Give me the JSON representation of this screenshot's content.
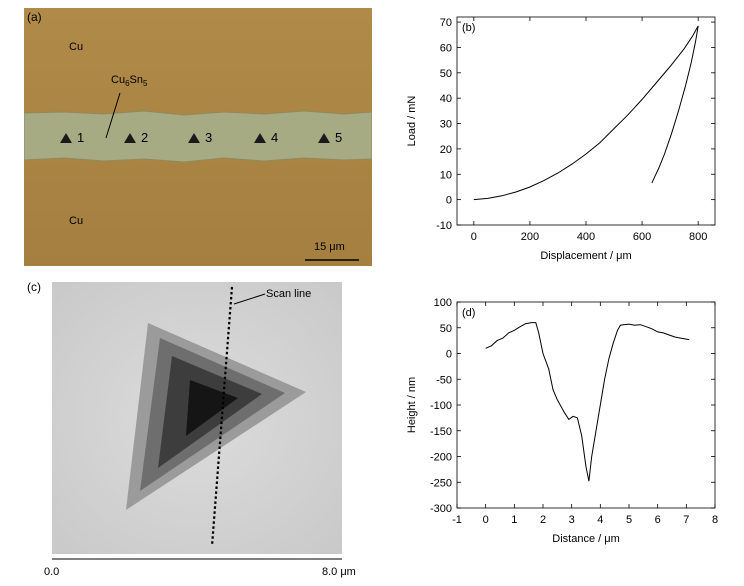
{
  "figure": {
    "panel_a": {
      "tag": "(a)",
      "cu_top": "Cu",
      "cu_bottom": "Cu",
      "imc_label_main": "Cu",
      "imc_sub1": "6",
      "imc_label_mid": "Sn",
      "imc_sub2": "5",
      "indents": [
        "1",
        "2",
        "3",
        "4",
        "5"
      ],
      "scalebar": "15 μm"
    },
    "panel_c": {
      "tag": "(c)",
      "scan_line": "Scan line",
      "axis_start": "0.0",
      "axis_end": "8.0 μm"
    }
  },
  "chart_data": [
    {
      "id": "b",
      "type": "line",
      "tag": "(b)",
      "xlabel": "Displacement / μm",
      "ylabel": "Load / mN",
      "xlim": [
        -60,
        860
      ],
      "ylim": [
        -10,
        72
      ],
      "xticks": [
        0,
        200,
        400,
        600,
        800
      ],
      "yticks": [
        -10,
        0,
        10,
        20,
        30,
        40,
        50,
        60,
        70
      ],
      "grid": false,
      "series": [
        {
          "x": [
            0,
            50,
            100,
            150,
            200,
            250,
            300,
            350,
            400,
            450,
            500,
            550,
            600,
            650,
            700,
            750,
            780,
            795,
            800
          ],
          "y": [
            0,
            0.5,
            1.5,
            3.0,
            5.0,
            7.5,
            10.5,
            14,
            18,
            22.5,
            28,
            33.5,
            39.5,
            46,
            52.5,
            59.5,
            64.5,
            67.5,
            68.5
          ]
        },
        {
          "x": [
            800,
            790,
            775,
            755,
            730,
            705,
            680,
            660,
            645,
            635
          ],
          "y": [
            68.5,
            62,
            54,
            45,
            35,
            26,
            18,
            12.5,
            9,
            6.5
          ]
        }
      ]
    },
    {
      "id": "d",
      "type": "line",
      "tag": "(d)",
      "xlabel": "Distance / μm",
      "ylabel": "Height / nm",
      "xlim": [
        -1,
        8
      ],
      "ylim": [
        -300,
        100
      ],
      "xticks": [
        -1,
        0,
        1,
        2,
        3,
        4,
        5,
        6,
        7,
        8
      ],
      "yticks": [
        100,
        50,
        0,
        -50,
        -100,
        -150,
        -200,
        -250,
        -300
      ],
      "grid": false,
      "series": [
        {
          "x": [
            0.0,
            0.2,
            0.4,
            0.6,
            0.8,
            1.0,
            1.2,
            1.4,
            1.6,
            1.75,
            1.85,
            2.0,
            2.2,
            2.35,
            2.5,
            2.6,
            2.75,
            2.9,
            3.05,
            3.2,
            3.35,
            3.5,
            3.6,
            3.7,
            3.85,
            4.0,
            4.15,
            4.3,
            4.45,
            4.6,
            4.7,
            4.8,
            5.0,
            5.2,
            5.4,
            5.6,
            5.8,
            6.0,
            6.2,
            6.4,
            6.6,
            6.8,
            7.0,
            7.1
          ],
          "y": [
            10,
            15,
            25,
            30,
            40,
            45,
            52,
            58,
            60,
            60,
            40,
            0,
            -30,
            -70,
            -90,
            -100,
            -115,
            -128,
            -122,
            -125,
            -160,
            -220,
            -248,
            -200,
            -150,
            -100,
            -50,
            -10,
            20,
            45,
            55,
            56,
            57,
            55,
            56,
            52,
            48,
            42,
            40,
            36,
            32,
            30,
            28,
            27
          ]
        }
      ]
    }
  ]
}
